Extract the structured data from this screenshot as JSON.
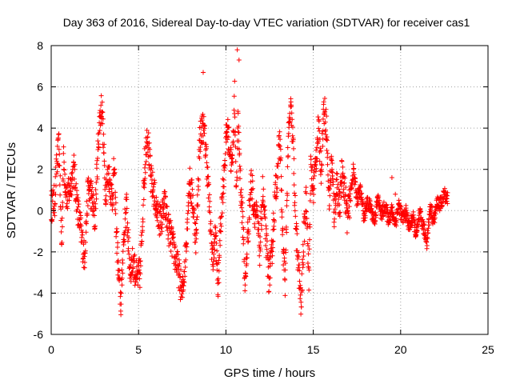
{
  "chart_data": {
    "type": "scatter",
    "title": "Day 363 of 2016, Sidereal Day-to-day VTEC variation (SDTVAR) for receiver cas1",
    "xlabel": "GPS time / hours",
    "ylabel": "SDTVAR / TECUs",
    "xlim": [
      0,
      25
    ],
    "ylim": [
      -6,
      8
    ],
    "xticks": [
      0,
      5,
      10,
      15,
      20,
      25
    ],
    "yticks": [
      -6,
      -4,
      -2,
      0,
      2,
      4,
      6,
      8
    ],
    "grid": true,
    "marker": "+",
    "color": "#ff0000",
    "series": [
      {
        "name": "SDTVAR",
        "anchors": [
          [
            0.0,
            0.2
          ],
          [
            0.2,
            0.5
          ],
          [
            0.3,
            2.0
          ],
          [
            0.45,
            3.2
          ],
          [
            0.6,
            -1.8
          ],
          [
            0.7,
            2.5
          ],
          [
            0.9,
            0.5
          ],
          [
            1.1,
            1.2
          ],
          [
            1.3,
            2.0
          ],
          [
            1.5,
            0.2
          ],
          [
            1.7,
            -1.0
          ],
          [
            1.9,
            -2.3
          ],
          [
            2.1,
            1.0
          ],
          [
            2.3,
            0.8
          ],
          [
            2.5,
            -0.5
          ],
          [
            2.6,
            1.5
          ],
          [
            2.75,
            4.2
          ],
          [
            2.9,
            5.2
          ],
          [
            3.1,
            1.0
          ],
          [
            3.3,
            1.8
          ],
          [
            3.5,
            0.5
          ],
          [
            3.6,
            2.1
          ],
          [
            3.75,
            -1.3
          ],
          [
            3.85,
            -3.0
          ],
          [
            4.0,
            -4.6
          ],
          [
            4.1,
            -2.0
          ],
          [
            4.3,
            0.3
          ],
          [
            4.5,
            -2.8
          ],
          [
            4.7,
            -2.5
          ],
          [
            4.9,
            -3.3
          ],
          [
            5.1,
            -3.0
          ],
          [
            5.3,
            1.2
          ],
          [
            5.5,
            4.0
          ],
          [
            5.7,
            1.5
          ],
          [
            5.9,
            0.8
          ],
          [
            6.1,
            -0.3
          ],
          [
            6.3,
            -0.5
          ],
          [
            6.5,
            0.3
          ],
          [
            6.7,
            -0.8
          ],
          [
            6.9,
            -1.5
          ],
          [
            7.1,
            -2.2
          ],
          [
            7.3,
            -3.0
          ],
          [
            7.5,
            -4.1
          ],
          [
            7.7,
            -2.0
          ],
          [
            7.9,
            1.5
          ],
          [
            8.1,
            0.5
          ],
          [
            8.3,
            -1.5
          ],
          [
            8.5,
            3.5
          ],
          [
            8.7,
            4.2
          ],
          [
            8.9,
            2.5
          ],
          [
            9.0,
            1.0
          ],
          [
            9.1,
            -0.5
          ],
          [
            9.25,
            -2.5
          ],
          [
            9.4,
            -1.0
          ],
          [
            9.55,
            -3.8
          ],
          [
            9.7,
            -0.5
          ],
          [
            9.9,
            2.0
          ],
          [
            10.05,
            4.0
          ],
          [
            10.2,
            3.2
          ],
          [
            10.35,
            2.0
          ],
          [
            10.5,
            5.5
          ],
          [
            10.6,
            0.8
          ],
          [
            10.7,
            4.5
          ],
          [
            10.85,
            1.0
          ],
          [
            11.0,
            -1.0
          ],
          [
            11.1,
            -3.8
          ],
          [
            11.25,
            -1.2
          ],
          [
            11.45,
            1.5
          ],
          [
            11.6,
            0.2
          ],
          [
            11.8,
            -0.5
          ],
          [
            11.95,
            -2.0
          ],
          [
            12.1,
            1.0
          ],
          [
            12.3,
            -1.5
          ],
          [
            12.45,
            -3.2
          ],
          [
            12.6,
            -2.5
          ],
          [
            12.8,
            0.5
          ],
          [
            12.95,
            2.0
          ],
          [
            13.1,
            3.5
          ],
          [
            13.25,
            -1.5
          ],
          [
            13.4,
            -3.5
          ],
          [
            13.55,
            3.0
          ],
          [
            13.7,
            5.0
          ],
          [
            13.85,
            3.2
          ],
          [
            14.0,
            -1.0
          ],
          [
            14.15,
            -2.5
          ],
          [
            14.3,
            -4.8
          ],
          [
            14.45,
            -1.5
          ],
          [
            14.6,
            1.0
          ],
          [
            14.75,
            -3.5
          ],
          [
            14.85,
            2.0
          ],
          [
            15.0,
            1.0
          ],
          [
            15.15,
            2.5
          ],
          [
            15.3,
            4.0
          ],
          [
            15.45,
            2.0
          ],
          [
            15.6,
            5.0
          ],
          [
            15.75,
            4.2
          ],
          [
            15.9,
            0.5
          ],
          [
            16.05,
            2.5
          ],
          [
            16.2,
            -0.2
          ],
          [
            16.35,
            1.5
          ],
          [
            16.5,
            0.0
          ],
          [
            16.65,
            2.0
          ],
          [
            16.8,
            1.0
          ],
          [
            16.95,
            -0.4
          ],
          [
            17.1,
            0.6
          ],
          [
            17.3,
            2.0
          ],
          [
            17.5,
            0.5
          ],
          [
            17.7,
            1.0
          ],
          [
            17.9,
            -0.3
          ],
          [
            18.1,
            0.4
          ],
          [
            18.3,
            0.1
          ],
          [
            18.5,
            -0.5
          ],
          [
            18.7,
            0.6
          ],
          [
            18.9,
            -0.2
          ],
          [
            19.1,
            0.2
          ],
          [
            19.3,
            -0.4
          ],
          [
            19.5,
            0.0
          ],
          [
            19.7,
            -0.6
          ],
          [
            19.9,
            0.3
          ],
          [
            20.1,
            -0.4
          ],
          [
            20.3,
            -0.1
          ],
          [
            20.5,
            -0.8
          ],
          [
            20.7,
            -0.3
          ],
          [
            20.9,
            -1.2
          ],
          [
            21.1,
            -0.2
          ],
          [
            21.3,
            -0.8
          ],
          [
            21.5,
            -1.5
          ],
          [
            21.7,
            0.2
          ],
          [
            21.9,
            -0.5
          ],
          [
            22.1,
            0.4
          ],
          [
            22.3,
            0.3
          ],
          [
            22.5,
            0.8
          ],
          [
            22.7,
            0.6
          ]
        ]
      }
    ]
  }
}
